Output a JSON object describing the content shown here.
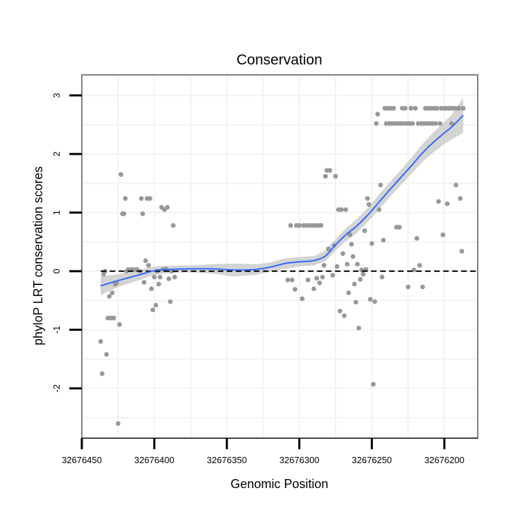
{
  "chart_data": {
    "type": "scatter",
    "title": "Conservation",
    "xlabel": "Genomic Position",
    "ylabel": "phyloP LRT conservation scores",
    "x_reversed": true,
    "xlim": [
      32676450,
      32676177
    ],
    "ylim": [
      -2.85,
      3.35
    ],
    "x_ticks": [
      32676450,
      32676400,
      32676350,
      32676300,
      32676250,
      32676200
    ],
    "x_tick_labels": [
      "32676450",
      "32676400",
      "32676350",
      "32676300",
      "32676250",
      "32676200"
    ],
    "y_ticks": [
      -2,
      -1,
      0,
      1,
      2,
      3
    ],
    "y_tick_labels": [
      "-2",
      "-1",
      "0",
      "1",
      "2",
      "3"
    ],
    "reference_line": {
      "y": 0,
      "style": "dashed",
      "color": "#000000"
    },
    "colors": {
      "points": "#989898",
      "smooth": "#3366ff",
      "ribbon": "#cccccc",
      "panel_border": "#7f7f7f",
      "grid": "#f2f2f2"
    },
    "points": [
      [
        32676437,
        -1.2
      ],
      [
        32676436,
        -1.75
      ],
      [
        32676435,
        -0.05
      ],
      [
        32676434,
        0
      ],
      [
        32676433,
        -1.42
      ],
      [
        32676432,
        -0.8
      ],
      [
        32676431,
        -0.43
      ],
      [
        32676430,
        -0.8
      ],
      [
        32676429,
        -0.37
      ],
      [
        32676428,
        -0.8
      ],
      [
        32676427,
        -0.22
      ],
      [
        32676426,
        -0.2
      ],
      [
        32676425,
        -2.6
      ],
      [
        32676424,
        -0.91
      ],
      [
        32676423,
        1.65
      ],
      [
        32676422,
        0.98
      ],
      [
        32676421,
        0.98
      ],
      [
        32676420,
        1.24
      ],
      [
        32676419,
        0
      ],
      [
        32676418,
        0.03
      ],
      [
        32676416,
        0.03
      ],
      [
        32676414,
        0.03
      ],
      [
        32676412,
        0.03
      ],
      [
        32676410,
        0
      ],
      [
        32676409,
        1.24
      ],
      [
        32676408,
        0.98
      ],
      [
        32676407,
        -0.19
      ],
      [
        32676406,
        0.18
      ],
      [
        32676405,
        1.24
      ],
      [
        32676404,
        0.1
      ],
      [
        32676403,
        1.24
      ],
      [
        32676402,
        -0.3
      ],
      [
        32676401,
        -0.66
      ],
      [
        32676400,
        -0.1
      ],
      [
        32676399,
        -0.58
      ],
      [
        32676398,
        0
      ],
      [
        32676397,
        -0.22
      ],
      [
        32676396,
        -0.1
      ],
      [
        32676395,
        1.09
      ],
      [
        32676394,
        0.03
      ],
      [
        32676393,
        1.05
      ],
      [
        32676392,
        0.04
      ],
      [
        32676391,
        1.09
      ],
      [
        32676390,
        -0.13
      ],
      [
        32676389,
        -0.52
      ],
      [
        32676388,
        0
      ],
      [
        32676387,
        0.78
      ],
      [
        32676386,
        -0.1
      ],
      [
        32676308,
        -0.15
      ],
      [
        32676306,
        0.78
      ],
      [
        32676305,
        -0.15
      ],
      [
        32676303,
        -0.31
      ],
      [
        32676302,
        0.78
      ],
      [
        32676300,
        0.78
      ],
      [
        32676298,
        -0.47
      ],
      [
        32676297,
        0.78
      ],
      [
        32676295,
        0.78
      ],
      [
        32676294,
        -0.15
      ],
      [
        32676293,
        0.78
      ],
      [
        32676291,
        0.78
      ],
      [
        32676290,
        -0.3
      ],
      [
        32676289,
        0.78
      ],
      [
        32676288,
        -0.12
      ],
      [
        32676287,
        0.78
      ],
      [
        32676286,
        -0.2
      ],
      [
        32676285,
        0.78
      ],
      [
        32676284,
        -0.1
      ],
      [
        32676283,
        0.1
      ],
      [
        32676282,
        1.62
      ],
      [
        32676281,
        1.72
      ],
      [
        32676280,
        0.38
      ],
      [
        32676279,
        1.72
      ],
      [
        32676277,
        -0.07
      ],
      [
        32676276,
        0.44
      ],
      [
        32676275,
        1.62
      ],
      [
        32676274,
        0.08
      ],
      [
        32676273,
        1.05
      ],
      [
        32676272,
        -0.68
      ],
      [
        32676271,
        1.05
      ],
      [
        32676270,
        0.3
      ],
      [
        32676269,
        -0.76
      ],
      [
        32676268,
        1.05
      ],
      [
        32676267,
        0.12
      ],
      [
        32676266,
        -0.37
      ],
      [
        32676265,
        0.62
      ],
      [
        32676264,
        0.46
      ],
      [
        32676263,
        0.25
      ],
      [
        32676262,
        -0.22
      ],
      [
        32676261,
        -0.53
      ],
      [
        32676260,
        0.12
      ],
      [
        32676259,
        -0.97
      ],
      [
        32676258,
        -0.14
      ],
      [
        32676257,
        0.02
      ],
      [
        32676256,
        -0.05
      ],
      [
        32676255,
        0.69
      ],
      [
        32676254,
        0.03
      ],
      [
        32676253,
        1.24
      ],
      [
        32676252,
        1.14
      ],
      [
        32676251,
        -0.48
      ],
      [
        32676250,
        0.47
      ],
      [
        32676249,
        -1.93
      ],
      [
        32676248,
        -0.52
      ],
      [
        32676247,
        2.52
      ],
      [
        32676246,
        2.68
      ],
      [
        32676245,
        1.05
      ],
      [
        32676244,
        1.47
      ],
      [
        32676243,
        -0.1
      ],
      [
        32676242,
        0.53
      ],
      [
        32676241,
        2.78
      ],
      [
        32676240,
        2.52
      ],
      [
        32676239,
        2.78
      ],
      [
        32676238,
        2.52
      ],
      [
        32676237,
        2.78
      ],
      [
        32676236,
        2.52
      ],
      [
        32676235,
        2.78
      ],
      [
        32676234,
        2.52
      ],
      [
        32676233,
        0.75
      ],
      [
        32676232,
        2.52
      ],
      [
        32676231,
        0.75
      ],
      [
        32676230,
        2.52
      ],
      [
        32676229,
        2.78
      ],
      [
        32676228,
        2.52
      ],
      [
        32676227,
        2.78
      ],
      [
        32676226,
        2.52
      ],
      [
        32676225,
        -0.27
      ],
      [
        32676224,
        2.52
      ],
      [
        32676223,
        2.78
      ],
      [
        32676222,
        2.52
      ],
      [
        32676221,
        0.02
      ],
      [
        32676220,
        2.78
      ],
      [
        32676219,
        0.56
      ],
      [
        32676218,
        2.52
      ],
      [
        32676217,
        0.1
      ],
      [
        32676216,
        2.52
      ],
      [
        32676215,
        -0.27
      ],
      [
        32676214,
        2.52
      ],
      [
        32676213,
        2.78
      ],
      [
        32676212,
        2.52
      ],
      [
        32676211,
        2.78
      ],
      [
        32676210,
        2.52
      ],
      [
        32676209,
        2.78
      ],
      [
        32676208,
        2.52
      ],
      [
        32676207,
        2.78
      ],
      [
        32676206,
        2.52
      ],
      [
        32676205,
        2.78
      ],
      [
        32676204,
        1.19
      ],
      [
        32676203,
        2.52
      ],
      [
        32676202,
        2.78
      ],
      [
        32676201,
        0.62
      ],
      [
        32676200,
        2.78
      ],
      [
        32676199,
        2.78
      ],
      [
        32676198,
        1.15
      ],
      [
        32676197,
        2.78
      ],
      [
        32676196,
        2.78
      ],
      [
        32676195,
        2.52
      ],
      [
        32676194,
        2.78
      ],
      [
        32676193,
        2.78
      ],
      [
        32676192,
        1.47
      ],
      [
        32676191,
        2.78
      ],
      [
        32676190,
        2.78
      ],
      [
        32676189,
        1.24
      ],
      [
        32676188,
        0.34
      ],
      [
        32676187,
        2.78
      ]
    ],
    "smooth_line": [
      [
        32676437,
        -0.25
      ],
      [
        32676425,
        -0.16
      ],
      [
        32676410,
        -0.06
      ],
      [
        32676400,
        0.01
      ],
      [
        32676390,
        0.03
      ],
      [
        32676375,
        0.04
      ],
      [
        32676360,
        0.04
      ],
      [
        32676345,
        0.02
      ],
      [
        32676330,
        0.03
      ],
      [
        32676320,
        0.07
      ],
      [
        32676310,
        0.13
      ],
      [
        32676300,
        0.16
      ],
      [
        32676290,
        0.18
      ],
      [
        32676282,
        0.26
      ],
      [
        32676275,
        0.45
      ],
      [
        32676268,
        0.62
      ],
      [
        32676260,
        0.78
      ],
      [
        32676252,
        0.98
      ],
      [
        32676245,
        1.18
      ],
      [
        32676238,
        1.38
      ],
      [
        32676230,
        1.6
      ],
      [
        32676222,
        1.82
      ],
      [
        32676215,
        2.02
      ],
      [
        32676208,
        2.19
      ],
      [
        32676200,
        2.36
      ],
      [
        32676195,
        2.46
      ],
      [
        32676187,
        2.66
      ]
    ],
    "ribbon_halfwidth": [
      [
        32676437,
        0.16
      ],
      [
        32676425,
        0.11
      ],
      [
        32676410,
        0.09
      ],
      [
        32676400,
        0.07
      ],
      [
        32676390,
        0.06
      ],
      [
        32676375,
        0.06
      ],
      [
        32676360,
        0.08
      ],
      [
        32676345,
        0.11
      ],
      [
        32676330,
        0.09
      ],
      [
        32676320,
        0.08
      ],
      [
        32676310,
        0.09
      ],
      [
        32676300,
        0.08
      ],
      [
        32676290,
        0.08
      ],
      [
        32676282,
        0.09
      ],
      [
        32676275,
        0.1
      ],
      [
        32676268,
        0.11
      ],
      [
        32676260,
        0.12
      ],
      [
        32676252,
        0.12
      ],
      [
        32676245,
        0.13
      ],
      [
        32676238,
        0.13
      ],
      [
        32676230,
        0.13
      ],
      [
        32676222,
        0.14
      ],
      [
        32676215,
        0.15
      ],
      [
        32676208,
        0.17
      ],
      [
        32676200,
        0.19
      ],
      [
        32676195,
        0.21
      ],
      [
        32676187,
        0.3
      ]
    ]
  }
}
